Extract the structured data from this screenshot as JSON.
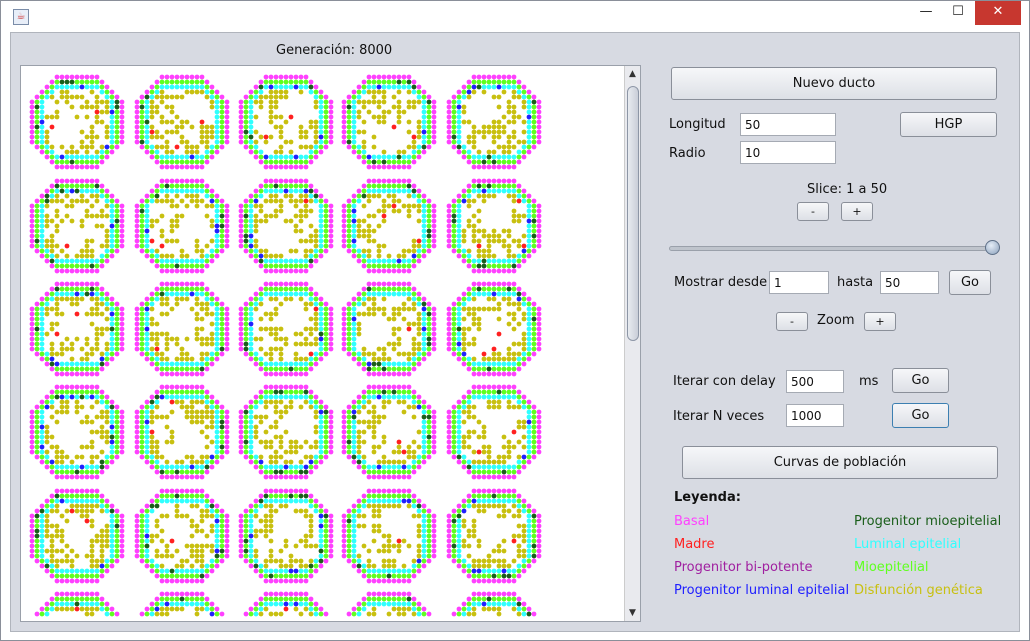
{
  "window": {
    "title": "",
    "minimize": "—",
    "maximize": "☐",
    "close": "✕"
  },
  "generation_label": "Generación: 8000",
  "controls": {
    "nuevo_ducto": "Nuevo ducto",
    "longitud_label": "Longitud",
    "longitud_value": "50",
    "radio_label": "Radio",
    "radio_value": "10",
    "hgp": "HGP",
    "slice_label": "Slice: 1 a 50",
    "slice_minus": "-",
    "slice_plus": "+",
    "slider_value": 50,
    "slider_max": 50,
    "mostrar_label": "Mostrar desde",
    "desde_value": "1",
    "hasta_label": "hasta",
    "hasta_value": "50",
    "mostrar_go": "Go",
    "zoom_minus": "-",
    "zoom_label": "Zoom",
    "zoom_plus": "+",
    "delay_label": "Iterar con delay",
    "delay_value": "500",
    "ms_label": "ms",
    "delay_go": "Go",
    "n_label": "Iterar N veces",
    "n_value": "1000",
    "n_go": "Go",
    "curvas": "Curvas de población"
  },
  "legend": {
    "title": "Leyenda:",
    "items": [
      {
        "label": "Basal",
        "color": "#ff40ff"
      },
      {
        "label": "Madre",
        "color": "#ff2020"
      },
      {
        "label": "Progenitor bi-potente",
        "color": "#a020a0"
      },
      {
        "label": "Progenitor luminal epitelial",
        "color": "#2020ff"
      },
      {
        "label": "Progenitor mioepitelial",
        "color": "#1a5e1a"
      },
      {
        "label": "Luminal epitelial",
        "color": "#30ffff"
      },
      {
        "label": "Mioepitelial",
        "color": "#60ff20"
      },
      {
        "label": "Disfunción genética",
        "color": "#c8c010"
      }
    ]
  }
}
